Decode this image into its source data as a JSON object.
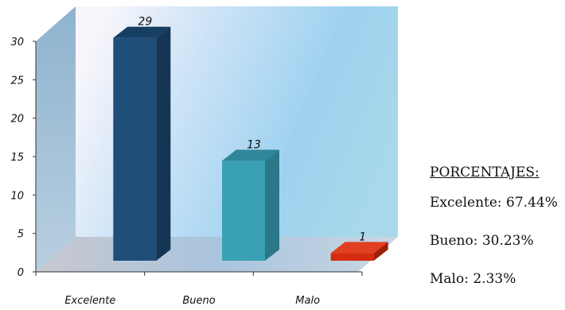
{
  "chart_data": {
    "type": "bar",
    "categories": [
      "Excelente",
      "Bueno",
      "Malo"
    ],
    "values": [
      29,
      13,
      1
    ],
    "data_labels": [
      "29",
      "13",
      "1"
    ],
    "ylim": [
      0,
      30
    ],
    "yticks": [
      "0",
      "5",
      "10",
      "15",
      "20",
      "25",
      "30"
    ],
    "title": "",
    "xlabel": "",
    "ylabel": "",
    "colors": {
      "Excelente": {
        "front": "#1f4e79",
        "side": "#143654",
        "top": "#163f63"
      },
      "Bueno": {
        "front": "#3aa0b4",
        "side": "#2a7888",
        "top": "#2f8799"
      },
      "Malo": {
        "front": "#d42c10",
        "side": "#9e1f0a",
        "top": "#e04020"
      }
    },
    "grid": false,
    "style": "3d-column"
  },
  "legend": {
    "title": "PORCENTAJES:",
    "rows": [
      {
        "text": "Excelente: 67.44%"
      },
      {
        "text": "Bueno: 30.23%"
      },
      {
        "text": "Malo: 2.33%"
      }
    ]
  }
}
